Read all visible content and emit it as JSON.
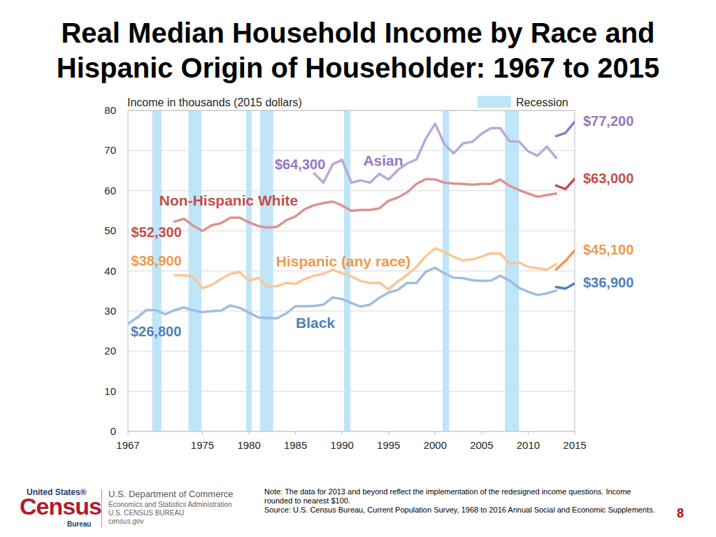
{
  "chart_data": {
    "type": "line",
    "title": "Real Median Household Income by Race and Hispanic Origin of Householder: 1967 to 2015",
    "y_label": "Income in thousands (2015 dollars)",
    "x": [
      1967,
      1968,
      1969,
      1970,
      1971,
      1972,
      1973,
      1974,
      1975,
      1976,
      1977,
      1978,
      1979,
      1980,
      1981,
      1982,
      1983,
      1984,
      1985,
      1986,
      1987,
      1988,
      1989,
      1990,
      1991,
      1992,
      1993,
      1994,
      1995,
      1996,
      1997,
      1998,
      1999,
      2000,
      2001,
      2002,
      2003,
      2004,
      2005,
      2006,
      2007,
      2008,
      2009,
      2010,
      2011,
      2012,
      2013,
      2014,
      2015
    ],
    "xlim": [
      1967,
      2015
    ],
    "xticks": [
      1967,
      1975,
      1980,
      1985,
      1990,
      1995,
      2000,
      2005,
      2010,
      2015
    ],
    "ylim": [
      0,
      80
    ],
    "yticks": [
      0,
      10,
      20,
      30,
      40,
      50,
      60,
      70,
      80
    ],
    "grid": true,
    "data_labels": true,
    "bands": {
      "label": "Recession",
      "color": "#bfe5f8",
      "ranges": [
        [
          1969.6,
          1970.6
        ],
        [
          1973.5,
          1974.9
        ],
        [
          1979.7,
          1980.3
        ],
        [
          1981.2,
          1982.6
        ],
        [
          1990.2,
          1990.9
        ],
        [
          2000.8,
          2001.5
        ],
        [
          2007.5,
          2009.0
        ]
      ]
    },
    "series": [
      {
        "name": "Asian",
        "color": "#bba8d6",
        "values": [
          null,
          null,
          null,
          null,
          null,
          null,
          null,
          null,
          null,
          null,
          null,
          null,
          null,
          null,
          null,
          null,
          null,
          null,
          null,
          null,
          64.3,
          62.0,
          66.6,
          67.7,
          62.0,
          62.6,
          62.0,
          64.2,
          62.8,
          65.2,
          66.8,
          67.8,
          73.0,
          76.7,
          71.6,
          69.3,
          71.8,
          72.2,
          74.2,
          75.6,
          75.6,
          72.3,
          72.3,
          69.8,
          68.7,
          71.0,
          68.2,
          null,
          null
        ],
        "value_labels": [
          null,
          null,
          null,
          null,
          null,
          null,
          null,
          null,
          null,
          null,
          null,
          null,
          null,
          null,
          null,
          null,
          null,
          null,
          null,
          null,
          "$64,300",
          null,
          null,
          null,
          null,
          null,
          null,
          null,
          null,
          null,
          null,
          null,
          null,
          null,
          null,
          null,
          null,
          null,
          null,
          null,
          null,
          null,
          null,
          null,
          null,
          null,
          null,
          null,
          null
        ]
      },
      {
        "name": "Non-Hispanic White",
        "color": "#dc9292",
        "values": [
          null,
          null,
          null,
          null,
          null,
          52.3,
          53.0,
          51.3,
          50.0,
          51.4,
          51.9,
          53.3,
          53.3,
          52.1,
          51.2,
          50.8,
          51.0,
          52.6,
          53.6,
          55.4,
          56.4,
          56.9,
          57.3,
          56.3,
          55.0,
          55.2,
          55.2,
          55.6,
          57.5,
          58.3,
          59.6,
          61.7,
          62.9,
          62.8,
          62.0,
          61.8,
          61.7,
          61.5,
          61.7,
          61.7,
          62.8,
          61.2,
          60.2,
          59.3,
          58.5,
          58.9,
          59.3,
          null,
          null
        ],
        "value_labels": [
          null,
          null,
          null,
          null,
          null,
          "$52,300",
          null,
          null,
          null,
          null,
          null,
          null,
          null,
          null,
          null,
          null,
          null,
          null,
          null,
          null,
          null,
          null,
          null,
          null,
          null,
          null,
          null,
          null,
          null,
          null,
          null,
          null,
          null,
          null,
          null,
          null,
          null,
          null,
          null,
          null,
          null,
          null,
          null,
          null,
          null,
          null,
          null,
          null,
          null
        ]
      },
      {
        "name": "Hispanic (any race)",
        "color": "#f8c797",
        "values": [
          null,
          null,
          null,
          null,
          null,
          38.9,
          38.9,
          38.6,
          35.7,
          36.5,
          38.0,
          39.3,
          39.7,
          37.5,
          38.3,
          36.0,
          36.2,
          37.0,
          36.8,
          38.0,
          38.8,
          39.3,
          40.3,
          39.4,
          38.6,
          37.5,
          37.0,
          37.1,
          35.4,
          37.4,
          39.0,
          41.0,
          43.7,
          45.6,
          44.8,
          43.5,
          42.6,
          42.9,
          43.6,
          44.4,
          44.3,
          41.9,
          42.1,
          41.0,
          40.7,
          40.3,
          41.7,
          null,
          null
        ],
        "value_labels": [
          null,
          null,
          null,
          null,
          null,
          "$38,900",
          null,
          null,
          null,
          null,
          null,
          null,
          null,
          null,
          null,
          null,
          null,
          null,
          null,
          null,
          null,
          null,
          null,
          null,
          null,
          null,
          null,
          null,
          null,
          null,
          null,
          null,
          null,
          null,
          null,
          null,
          null,
          null,
          null,
          null,
          null,
          null,
          null,
          null,
          null,
          null,
          null,
          null,
          null
        ]
      },
      {
        "name": "Black",
        "color": "#a0bde0",
        "values": [
          26.8,
          28.4,
          30.3,
          30.2,
          29.2,
          30.2,
          30.9,
          30.2,
          29.7,
          30.0,
          30.1,
          31.4,
          30.8,
          29.6,
          28.4,
          28.3,
          28.2,
          29.4,
          31.2,
          31.2,
          31.3,
          31.6,
          33.4,
          33.0,
          32.0,
          31.1,
          31.6,
          33.3,
          34.6,
          35.3,
          37.0,
          37.0,
          39.8,
          40.8,
          39.4,
          38.3,
          38.2,
          37.7,
          37.5,
          37.6,
          38.8,
          37.6,
          35.8,
          34.8,
          34.0,
          34.4,
          35.1,
          null,
          null
        ],
        "value_labels": [
          "$26,800",
          null,
          null,
          null,
          null,
          null,
          null,
          null,
          null,
          null,
          null,
          null,
          null,
          null,
          null,
          null,
          null,
          null,
          null,
          null,
          null,
          null,
          null,
          null,
          null,
          null,
          null,
          null,
          null,
          null,
          null,
          null,
          null,
          null,
          null,
          null,
          null,
          null,
          null,
          null,
          null,
          null,
          null,
          null,
          null,
          null,
          null,
          null,
          null
        ]
      },
      {
        "color": "#9479c2",
        "values": [
          null,
          null,
          null,
          null,
          null,
          null,
          null,
          null,
          null,
          null,
          null,
          null,
          null,
          null,
          null,
          null,
          null,
          null,
          null,
          null,
          null,
          null,
          null,
          null,
          null,
          null,
          null,
          null,
          null,
          null,
          null,
          null,
          null,
          null,
          null,
          null,
          null,
          null,
          null,
          null,
          null,
          null,
          null,
          null,
          null,
          null,
          73.6,
          74.4,
          77.2
        ],
        "value_labels": [
          null,
          null,
          null,
          null,
          null,
          null,
          null,
          null,
          null,
          null,
          null,
          null,
          null,
          null,
          null,
          null,
          null,
          null,
          null,
          null,
          null,
          null,
          null,
          null,
          null,
          null,
          null,
          null,
          null,
          null,
          null,
          null,
          null,
          null,
          null,
          null,
          null,
          null,
          null,
          null,
          null,
          null,
          null,
          null,
          null,
          null,
          null,
          null,
          "$77,200"
        ]
      },
      {
        "color": "#c0504d",
        "values": [
          null,
          null,
          null,
          null,
          null,
          null,
          null,
          null,
          null,
          null,
          null,
          null,
          null,
          null,
          null,
          null,
          null,
          null,
          null,
          null,
          null,
          null,
          null,
          null,
          null,
          null,
          null,
          null,
          null,
          null,
          null,
          null,
          null,
          null,
          null,
          null,
          null,
          null,
          null,
          null,
          null,
          null,
          null,
          null,
          null,
          null,
          61.3,
          60.4,
          63.0
        ],
        "value_labels": [
          null,
          null,
          null,
          null,
          null,
          null,
          null,
          null,
          null,
          null,
          null,
          null,
          null,
          null,
          null,
          null,
          null,
          null,
          null,
          null,
          null,
          null,
          null,
          null,
          null,
          null,
          null,
          null,
          null,
          null,
          null,
          null,
          null,
          null,
          null,
          null,
          null,
          null,
          null,
          null,
          null,
          null,
          null,
          null,
          null,
          null,
          null,
          null,
          "$63,000"
        ]
      },
      {
        "color": "#f0984c",
        "values": [
          null,
          null,
          null,
          null,
          null,
          null,
          null,
          null,
          null,
          null,
          null,
          null,
          null,
          null,
          null,
          null,
          null,
          null,
          null,
          null,
          null,
          null,
          null,
          null,
          null,
          null,
          null,
          null,
          null,
          null,
          null,
          null,
          null,
          null,
          null,
          null,
          null,
          null,
          null,
          null,
          null,
          null,
          null,
          null,
          null,
          null,
          40.4,
          42.5,
          45.1
        ],
        "value_labels": [
          null,
          null,
          null,
          null,
          null,
          null,
          null,
          null,
          null,
          null,
          null,
          null,
          null,
          null,
          null,
          null,
          null,
          null,
          null,
          null,
          null,
          null,
          null,
          null,
          null,
          null,
          null,
          null,
          null,
          null,
          null,
          null,
          null,
          null,
          null,
          null,
          null,
          null,
          null,
          null,
          null,
          null,
          null,
          null,
          null,
          null,
          null,
          null,
          "$45,100"
        ]
      },
      {
        "color": "#4f81bd",
        "values": [
          null,
          null,
          null,
          null,
          null,
          null,
          null,
          null,
          null,
          null,
          null,
          null,
          null,
          null,
          null,
          null,
          null,
          null,
          null,
          null,
          null,
          null,
          null,
          null,
          null,
          null,
          null,
          null,
          null,
          null,
          null,
          null,
          null,
          null,
          null,
          null,
          null,
          null,
          null,
          null,
          null,
          null,
          null,
          null,
          null,
          null,
          36.0,
          35.6,
          36.9
        ],
        "value_labels": [
          null,
          null,
          null,
          null,
          null,
          null,
          null,
          null,
          null,
          null,
          null,
          null,
          null,
          null,
          null,
          null,
          null,
          null,
          null,
          null,
          null,
          null,
          null,
          null,
          null,
          null,
          null,
          null,
          null,
          null,
          null,
          null,
          null,
          null,
          null,
          null,
          null,
          null,
          null,
          null,
          null,
          null,
          null,
          null,
          null,
          null,
          null,
          null,
          "$36,900"
        ]
      }
    ]
  },
  "footer": {
    "logo_top": "United States®",
    "logo_main": "Census",
    "logo_bottom": "Bureau",
    "agency": [
      "U.S. Department of Commerce",
      "Economics and Statistics Administration",
      "U.S. CENSUS BUREAU",
      "census.gov"
    ],
    "note": "Note: The data for 2013 and beyond reflect the implementation of the redesigned income questions. Income rounded to nearest $100.",
    "source": "Source: U.S. Census Bureau, Current Population Survey, 1968 to 2016 Annual Social and Economic Supplements.",
    "page": "8"
  }
}
